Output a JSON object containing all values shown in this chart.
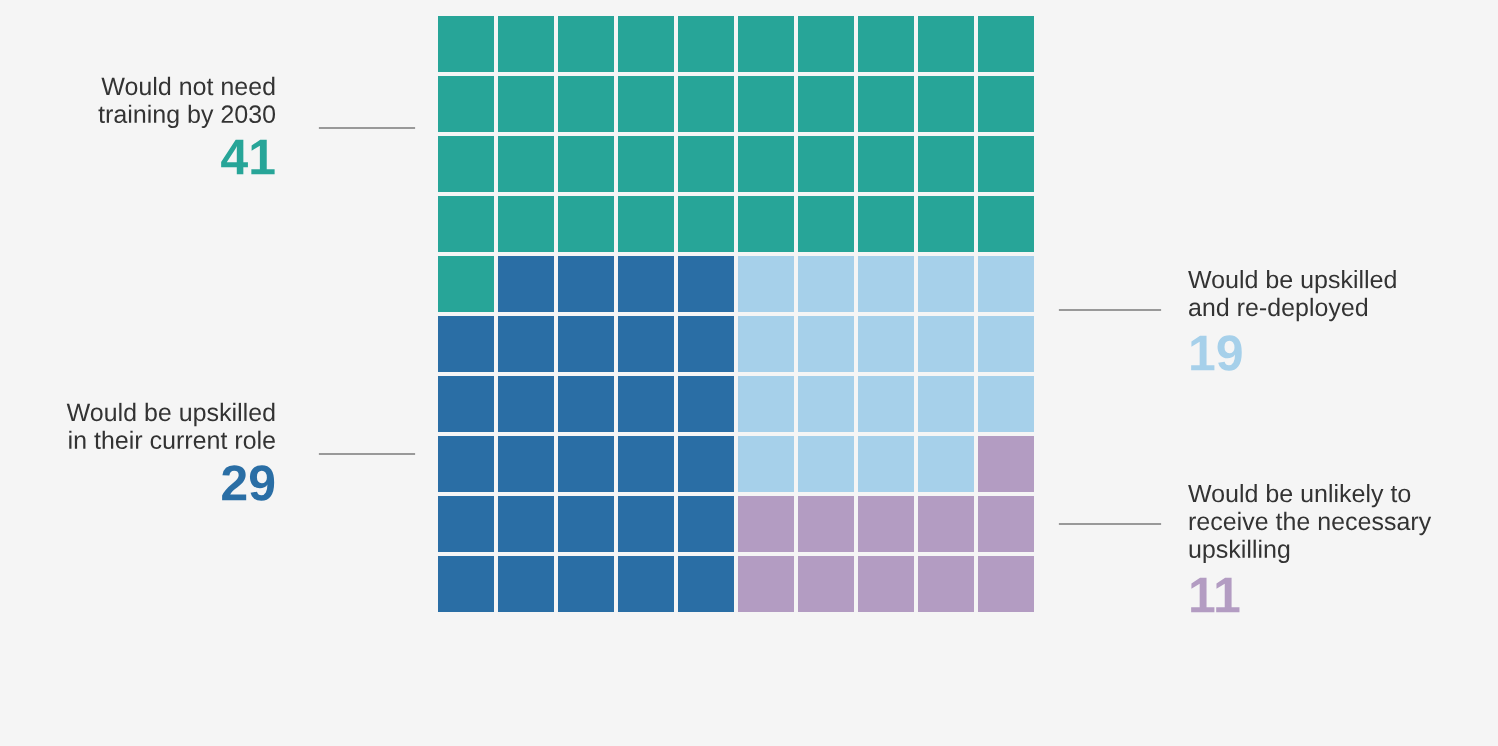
{
  "chart_data": {
    "type": "other",
    "categories": [
      "Would not need\ntraining by 2030",
      "Would be upskilled\nin their current role",
      "Would be upskilled\nand re-deployed",
      "Would be unlikely to\nreceive the necessary\nupskilling"
    ],
    "values": [
      41,
      29,
      19,
      11
    ],
    "colors": [
      "#27a598",
      "#2a6ea5",
      "#a6d0ea",
      "#b39cc2"
    ],
    "data_labels": true
  }
}
